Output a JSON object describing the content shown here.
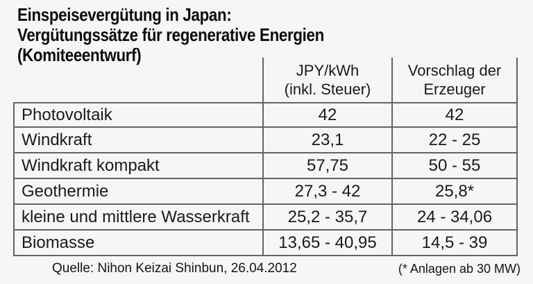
{
  "title": {
    "line1": "Einspeisevergütung in Japan:",
    "line2": "Vergütungssätze für regenerative Energien",
    "line3": "(Komiteeentwurf)"
  },
  "table": {
    "header": {
      "col2_line1": "JPY/kWh",
      "col2_line2": "(inkl. Steuer)",
      "col3_line1": "Vorschlag der",
      "col3_line2": "Erzeuger"
    },
    "rows": [
      {
        "label": "Photovoltaik",
        "jpy": "42",
        "vorschlag": "42"
      },
      {
        "label": "Windkraft",
        "jpy": "23,1",
        "vorschlag": "22 - 25"
      },
      {
        "label": "Windkraft kompakt",
        "jpy": "57,75",
        "vorschlag": "50 - 55"
      },
      {
        "label": "Geothermie",
        "jpy": "27,3 - 42",
        "vorschlag": "25,8*"
      },
      {
        "label": "kleine und mittlere Wasserkraft",
        "jpy": "25,2 - 35,7",
        "vorschlag": "24 - 34,06"
      },
      {
        "label": "Biomasse",
        "jpy": "13,65 - 40,95",
        "vorschlag": "14,5 - 39"
      }
    ]
  },
  "footer": {
    "source": "Quelle: Nihon Keizai Shinbun, 26.04.2012",
    "note": "(* Anlagen ab 30 MW)"
  },
  "colors": {
    "background": "#f6f6f9",
    "border": "#646467",
    "text": "#1a1a1a"
  },
  "chart_data": {
    "type": "table",
    "title": "Einspeisevergütung in Japan: Vergütungssätze für regenerative Energien (Komiteeentwurf)",
    "columns": [
      "",
      "JPY/kWh (inkl. Steuer)",
      "Vorschlag der Erzeuger"
    ],
    "rows": [
      [
        "Photovoltaik",
        "42",
        "42"
      ],
      [
        "Windkraft",
        "23,1",
        "22 - 25"
      ],
      [
        "Windkraft kompakt",
        "57,75",
        "50 - 55"
      ],
      [
        "Geothermie",
        "27,3 - 42",
        "25,8*"
      ],
      [
        "kleine und mittlere Wasserkraft",
        "25,2 - 35,7",
        "24 - 34,06"
      ],
      [
        "Biomasse",
        "13,65 - 40,95",
        "14,5 - 39"
      ]
    ],
    "source": "Quelle: Nihon Keizai Shinbun, 26.04.2012",
    "footnote": "(* Anlagen ab 30 MW)"
  }
}
